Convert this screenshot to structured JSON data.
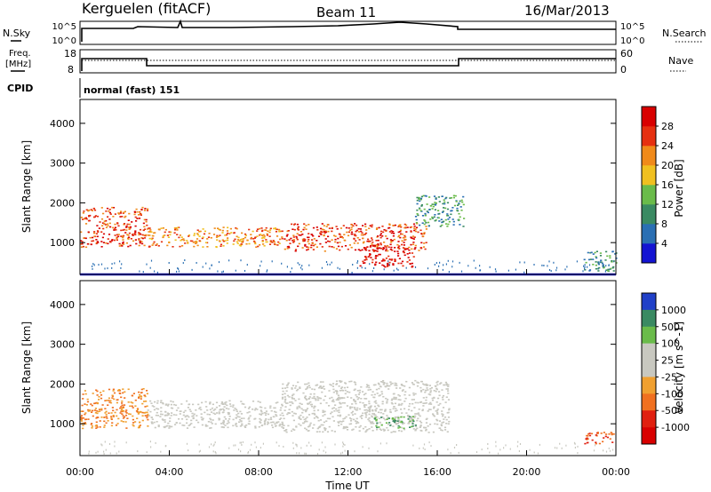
{
  "header": {
    "station": "Kerguelen (fitACF)",
    "beam": "Beam 11",
    "date": "16/Mar/2013"
  },
  "top_panels": {
    "nsky_label": "N.Sky",
    "nsky_ticks": [
      "10^5",
      "10^0"
    ],
    "nsearch_label": "N.Search",
    "nsearch_ticks": [
      "10^5",
      "10^0"
    ],
    "freq_label_line1": "Freq.",
    "freq_label_line2": "[MHz]",
    "freq_ticks": [
      "18",
      "8"
    ],
    "nave_label": "Nave",
    "nave_ticks": [
      "60",
      "0"
    ],
    "cpid_label": "CPID",
    "cpid_value": "normal (fast) 151"
  },
  "chart_data": [
    {
      "type": "heatmap",
      "name": "power",
      "ylabel": "Slant Range [km]",
      "ylim": [
        200,
        4600
      ],
      "yticks": [
        "1000",
        "2000",
        "3000",
        "4000"
      ],
      "colorbar_label": "Power [dB]",
      "colorbar_ticks": [
        "4",
        "8",
        "12",
        "16",
        "20",
        "24",
        "28"
      ],
      "colorbar_colors": [
        "#1414d2",
        "#2a6fb3",
        "#3a8a62",
        "#6abb4a",
        "#f0c020",
        "#f08a1a",
        "#e63010",
        "#d80000"
      ],
      "echo_regions": [
        {
          "t0": 0.0,
          "t1": 3.0,
          "r0": 900,
          "r1": 1900,
          "level": 24
        },
        {
          "t0": 3.0,
          "t1": 9.0,
          "r0": 900,
          "r1": 1400,
          "level": 20
        },
        {
          "t0": 9.0,
          "t1": 15.5,
          "r0": 800,
          "r1": 1500,
          "level": 24
        },
        {
          "t0": 12.5,
          "t1": 15.0,
          "r0": 400,
          "r1": 900,
          "level": 28
        },
        {
          "t0": 15.0,
          "t1": 17.2,
          "r0": 1400,
          "r1": 2200,
          "level": 8
        },
        {
          "t0": 22.5,
          "t1": 24.0,
          "r0": 300,
          "r1": 800,
          "level": 8
        }
      ]
    },
    {
      "type": "heatmap",
      "name": "velocity",
      "ylabel": "Slant Range [km]",
      "ylim": [
        200,
        4600
      ],
      "yticks": [
        "1000",
        "2000",
        "3000",
        "4000"
      ],
      "xlabel": "Time UT",
      "xticks": [
        "00:00",
        "04:00",
        "08:00",
        "12:00",
        "16:00",
        "20:00",
        "00:00"
      ],
      "xlim": [
        0,
        24
      ],
      "colorbar_label": "Velocity [m s^-1]",
      "colorbar_ticks": [
        "1000",
        "500",
        "100",
        "25",
        "-25",
        "-100",
        "-500",
        "-1000"
      ],
      "colorbar_colors": [
        "#2040c8",
        "#3a8a62",
        "#6abb4a",
        "#c8c8c0",
        "#c8c8c0",
        "#f0a030",
        "#f07020",
        "#e02010",
        "#d80000"
      ],
      "echo_regions": [
        {
          "t0": 0.0,
          "t1": 3.0,
          "r0": 900,
          "r1": 1900,
          "level": -100
        },
        {
          "t0": 3.0,
          "t1": 9.0,
          "r0": 900,
          "r1": 1600,
          "level": 0
        },
        {
          "t0": 9.0,
          "t1": 16.5,
          "r0": 800,
          "r1": 2100,
          "level": 0
        },
        {
          "t0": 13.0,
          "t1": 15.0,
          "r0": 900,
          "r1": 1200,
          "level": 100
        },
        {
          "t0": 22.5,
          "t1": 24.0,
          "r0": 500,
          "r1": 800,
          "level": -500
        }
      ]
    }
  ]
}
